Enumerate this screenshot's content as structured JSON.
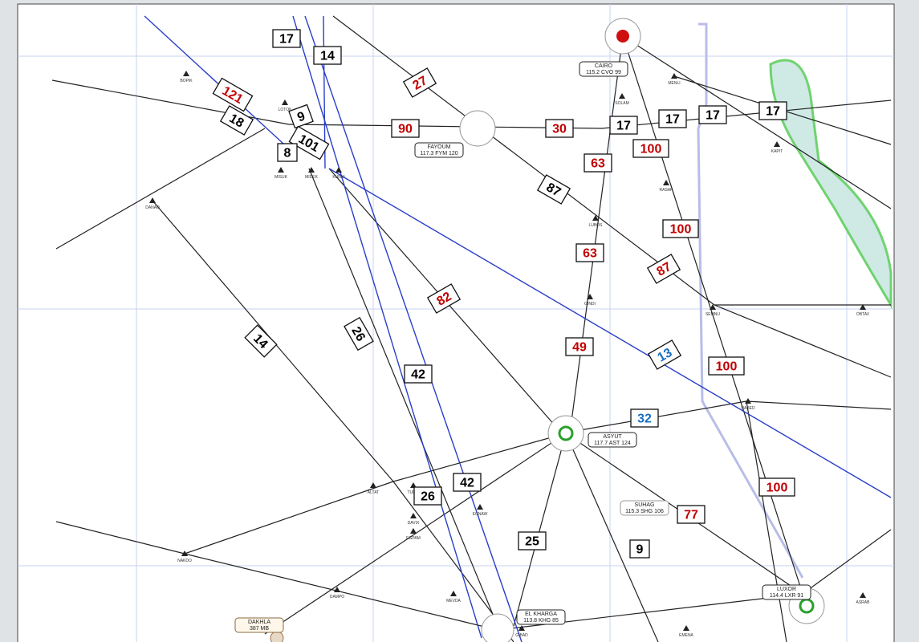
{
  "boxes": [
    {
      "label": 17,
      "color": "#000000"
    },
    {
      "label": 14,
      "color": "#000000"
    },
    {
      "label": 121,
      "color": "#c00000"
    },
    {
      "label": 18,
      "color": "#000000"
    },
    {
      "label": 9,
      "color": "#000000"
    },
    {
      "label": 101,
      "color": "#000000"
    },
    {
      "label": 8,
      "color": "#000000"
    },
    {
      "label": 90,
      "color": "#c00000"
    },
    {
      "label": 27,
      "color": "#c00000"
    },
    {
      "label": 30,
      "color": "#c00000"
    },
    {
      "label": 17,
      "color": "#000000"
    },
    {
      "label": 17,
      "color": "#000000"
    },
    {
      "label": 17,
      "color": "#000000"
    },
    {
      "label": 17,
      "color": "#000000"
    },
    {
      "label": 63,
      "color": "#c00000"
    },
    {
      "label": 100,
      "color": "#c00000"
    },
    {
      "label": 87,
      "color": "#000000"
    },
    {
      "label": 100,
      "color": "#c00000"
    },
    {
      "label": 63,
      "color": "#c00000"
    },
    {
      "label": 87,
      "color": "#c00000"
    },
    {
      "label": 82,
      "color": "#c00000"
    },
    {
      "label": 49,
      "color": "#c00000"
    },
    {
      "label": 13,
      "color": "#1a6fc2"
    },
    {
      "label": 100,
      "color": "#c00000"
    },
    {
      "label": 14,
      "color": "#000000"
    },
    {
      "label": 26,
      "color": "#000000"
    },
    {
      "label": 42,
      "color": "#000000"
    },
    {
      "label": 32,
      "color": "#1a6fc2"
    },
    {
      "label": 26,
      "color": "#000000"
    },
    {
      "label": 42,
      "color": "#000000"
    },
    {
      "label": 25,
      "color": "#000000"
    },
    {
      "label": 9,
      "color": "#000000"
    },
    {
      "label": 77,
      "color": "#c00000"
    },
    {
      "label": 100,
      "color": "#c00000"
    }
  ],
  "navaids": [
    {
      "name": "FAYOUM",
      "freq": "117.3 FYM 120"
    },
    {
      "name": "CAIRO",
      "freq": "115.2 CVO 99"
    },
    {
      "name": "ASYUT",
      "freq": "117.7 AST 124"
    },
    {
      "name": "EL KHARGA",
      "freq": "113.8 KHG 85"
    },
    {
      "name": "LUXOR",
      "freq": "114.4 LXR 91"
    },
    {
      "name": "DAKHLA",
      "freq": "387 MB"
    },
    {
      "name": "SUHAG",
      "freq": "115.3 SHG 106"
    }
  ],
  "waypoints": [
    "BOPIK",
    "LOTOK",
    "MISUK",
    "MIDEK",
    "KUNKI",
    "DANAD",
    "SOLAM",
    "MENLI",
    "KAPIT",
    "RASAK",
    "LUBOS",
    "GINDI",
    "SEMNU",
    "OBTAV",
    "NABED",
    "ALTAT",
    "TUDIA",
    "DAVIX",
    "EGNAW",
    "EGPAM",
    "NAKDO",
    "DAMPO",
    "MEVDA",
    "GIBAD",
    "EMENA",
    "ASRAB"
  ]
}
